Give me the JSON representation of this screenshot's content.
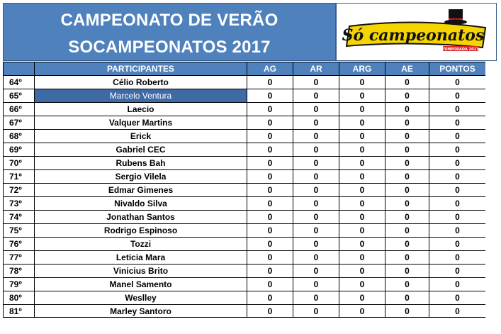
{
  "header": {
    "title_line1": "CAMPEONATO DE VERÃO",
    "title_line2": "SOCAMPEONATOS 2017",
    "logo_text": "Só campeonatos",
    "logo_subtext": "TEMPORADA 2017"
  },
  "colors": {
    "header_blue": "#4f81bd",
    "highlight_blue": "#3e6aa6",
    "logo_yellow": "#f5d400",
    "logo_red": "#d9262b"
  },
  "table": {
    "columns": [
      "",
      "PARTICIPANTES",
      "AG",
      "AR",
      "ARG",
      "AE",
      "PONTOS"
    ],
    "highlighted_row": 1,
    "rows": [
      {
        "pos": "64º",
        "name": "Célio Roberto",
        "ag": "0",
        "ar": "0",
        "arg": "0",
        "ae": "0",
        "pontos": "0"
      },
      {
        "pos": "65º",
        "name": "Marcelo Ventura",
        "ag": "0",
        "ar": "0",
        "arg": "0",
        "ae": "0",
        "pontos": "0"
      },
      {
        "pos": "66º",
        "name": "Laecio",
        "ag": "0",
        "ar": "0",
        "arg": "0",
        "ae": "0",
        "pontos": "0"
      },
      {
        "pos": "67º",
        "name": "Valquer Martins",
        "ag": "0",
        "ar": "0",
        "arg": "0",
        "ae": "0",
        "pontos": "0"
      },
      {
        "pos": "68º",
        "name": "Erick",
        "ag": "0",
        "ar": "0",
        "arg": "0",
        "ae": "0",
        "pontos": "0"
      },
      {
        "pos": "69º",
        "name": "Gabriel CEC",
        "ag": "0",
        "ar": "0",
        "arg": "0",
        "ae": "0",
        "pontos": "0"
      },
      {
        "pos": "70º",
        "name": "Rubens Bah",
        "ag": "0",
        "ar": "0",
        "arg": "0",
        "ae": "0",
        "pontos": "0"
      },
      {
        "pos": "71º",
        "name": "Sergio Vilela",
        "ag": "0",
        "ar": "0",
        "arg": "0",
        "ae": "0",
        "pontos": "0"
      },
      {
        "pos": "72º",
        "name": "Edmar Gimenes",
        "ag": "0",
        "ar": "0",
        "arg": "0",
        "ae": "0",
        "pontos": "0"
      },
      {
        "pos": "73º",
        "name": "Nivaldo Silva",
        "ag": "0",
        "ar": "0",
        "arg": "0",
        "ae": "0",
        "pontos": "0"
      },
      {
        "pos": "74º",
        "name": "Jonathan Santos",
        "ag": "0",
        "ar": "0",
        "arg": "0",
        "ae": "0",
        "pontos": "0"
      },
      {
        "pos": "75º",
        "name": "Rodrigo Espinoso",
        "ag": "0",
        "ar": "0",
        "arg": "0",
        "ae": "0",
        "pontos": "0"
      },
      {
        "pos": "76º",
        "name": "Tozzi",
        "ag": "0",
        "ar": "0",
        "arg": "0",
        "ae": "0",
        "pontos": "0"
      },
      {
        "pos": "77º",
        "name": "Leticia Mara",
        "ag": "0",
        "ar": "0",
        "arg": "0",
        "ae": "0",
        "pontos": "0"
      },
      {
        "pos": "78º",
        "name": "Vinicius Brito",
        "ag": "0",
        "ar": "0",
        "arg": "0",
        "ae": "0",
        "pontos": "0"
      },
      {
        "pos": "79º",
        "name": "Manel Samento",
        "ag": "0",
        "ar": "0",
        "arg": "0",
        "ae": "0",
        "pontos": "0"
      },
      {
        "pos": "80º",
        "name": "Weslley",
        "ag": "0",
        "ar": "0",
        "arg": "0",
        "ae": "0",
        "pontos": "0"
      },
      {
        "pos": "81º",
        "name": "Marley Santoro",
        "ag": "0",
        "ar": "0",
        "arg": "0",
        "ae": "0",
        "pontos": "0"
      }
    ]
  }
}
